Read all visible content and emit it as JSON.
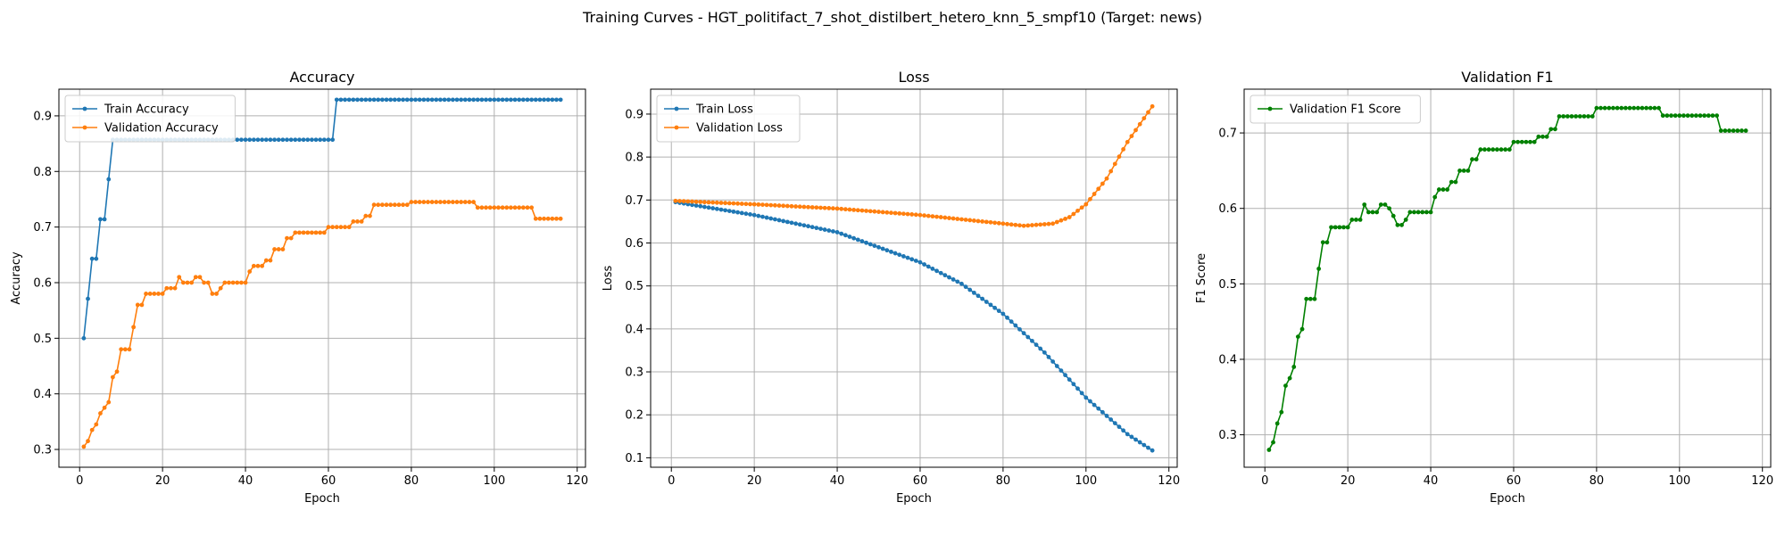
{
  "figure": {
    "suptitle": "Training Curves - HGT_politifact_7_shot_distilbert_hetero_knn_5_smpf10 (Target: news)"
  },
  "colors": {
    "blue": "#1f77b4",
    "orange": "#ff7f0e",
    "green": "#008000",
    "grid": "#b0b0b0"
  },
  "chart_data": [
    {
      "type": "line",
      "title": "Accuracy",
      "xlabel": "Epoch",
      "ylabel": "Accuracy",
      "xlim": [
        -5,
        122
      ],
      "ylim": [
        0.268,
        0.948
      ],
      "xticks": [
        0,
        20,
        40,
        60,
        80,
        100,
        120
      ],
      "yticks": [
        0.3,
        0.4,
        0.5,
        0.6,
        0.7,
        0.8,
        0.9
      ],
      "grid": true,
      "legend": "top-left",
      "series": [
        {
          "name": "Train Accuracy",
          "color": "#1f77b4",
          "steps": [
            [
              1,
              0.5
            ],
            [
              2,
              0.571
            ],
            [
              3,
              0.643
            ],
            [
              5,
              0.714
            ],
            [
              7,
              0.786
            ],
            [
              8,
              0.857
            ],
            [
              62,
              0.929
            ]
          ],
          "x_end": 116
        },
        {
          "name": "Validation Accuracy",
          "color": "#ff7f0e",
          "steps": [
            [
              1,
              0.305
            ],
            [
              2,
              0.315
            ],
            [
              3,
              0.335
            ],
            [
              4,
              0.345
            ],
            [
              5,
              0.365
            ],
            [
              6,
              0.375
            ],
            [
              7,
              0.385
            ],
            [
              8,
              0.43
            ],
            [
              9,
              0.44
            ],
            [
              10,
              0.48
            ],
            [
              13,
              0.52
            ],
            [
              14,
              0.56
            ],
            [
              16,
              0.58
            ],
            [
              21,
              0.59
            ],
            [
              24,
              0.61
            ],
            [
              25,
              0.6
            ],
            [
              28,
              0.61
            ],
            [
              30,
              0.6
            ],
            [
              32,
              0.58
            ],
            [
              34,
              0.59
            ],
            [
              35,
              0.6
            ],
            [
              41,
              0.62
            ],
            [
              42,
              0.63
            ],
            [
              45,
              0.64
            ],
            [
              47,
              0.66
            ],
            [
              50,
              0.68
            ],
            [
              52,
              0.69
            ],
            [
              60,
              0.7
            ],
            [
              66,
              0.71
            ],
            [
              69,
              0.72
            ],
            [
              71,
              0.74
            ],
            [
              80,
              0.745
            ],
            [
              96,
              0.735
            ],
            [
              110,
              0.715
            ]
          ],
          "x_end": 116
        }
      ]
    },
    {
      "type": "line",
      "title": "Loss",
      "xlabel": "Epoch",
      "ylabel": "Loss",
      "xlim": [
        -5,
        122
      ],
      "ylim": [
        0.078,
        0.958
      ],
      "xticks": [
        0,
        20,
        40,
        60,
        80,
        100,
        120
      ],
      "yticks": [
        0.1,
        0.2,
        0.3,
        0.4,
        0.5,
        0.6,
        0.7,
        0.8,
        0.9
      ],
      "grid": true,
      "legend": "top-left",
      "series": [
        {
          "name": "Train Loss",
          "color": "#1f77b4",
          "curve": [
            [
              1,
              0.695
            ],
            [
              20,
              0.665
            ],
            [
              40,
              0.625
            ],
            [
              60,
              0.555
            ],
            [
              70,
              0.505
            ],
            [
              80,
              0.435
            ],
            [
              90,
              0.345
            ],
            [
              100,
              0.24
            ],
            [
              110,
              0.155
            ],
            [
              116,
              0.117
            ]
          ]
        },
        {
          "name": "Validation Loss",
          "color": "#ff7f0e",
          "curve": [
            [
              1,
              0.698
            ],
            [
              20,
              0.69
            ],
            [
              40,
              0.68
            ],
            [
              60,
              0.665
            ],
            [
              75,
              0.65
            ],
            [
              85,
              0.64
            ],
            [
              92,
              0.645
            ],
            [
              96,
              0.66
            ],
            [
              100,
              0.69
            ],
            [
              105,
              0.75
            ],
            [
              110,
              0.835
            ],
            [
              116,
              0.918
            ]
          ]
        }
      ]
    },
    {
      "type": "line",
      "title": "Validation F1",
      "xlabel": "Epoch",
      "ylabel": "F1 Score",
      "xlim": [
        -5,
        122
      ],
      "ylim": [
        0.257,
        0.758
      ],
      "xticks": [
        0,
        20,
        40,
        60,
        80,
        100,
        120
      ],
      "yticks": [
        0.3,
        0.4,
        0.5,
        0.6,
        0.7
      ],
      "grid": true,
      "legend": "top-left",
      "series": [
        {
          "name": "Validation F1 Score",
          "color": "#008000",
          "steps": [
            [
              1,
              0.28
            ],
            [
              2,
              0.29
            ],
            [
              3,
              0.315
            ],
            [
              4,
              0.33
            ],
            [
              5,
              0.365
            ],
            [
              6,
              0.375
            ],
            [
              7,
              0.39
            ],
            [
              8,
              0.43
            ],
            [
              9,
              0.44
            ],
            [
              10,
              0.48
            ],
            [
              13,
              0.52
            ],
            [
              14,
              0.555
            ],
            [
              16,
              0.575
            ],
            [
              21,
              0.585
            ],
            [
              24,
              0.605
            ],
            [
              25,
              0.595
            ],
            [
              28,
              0.605
            ],
            [
              30,
              0.6
            ],
            [
              31,
              0.59
            ],
            [
              32,
              0.578
            ],
            [
              34,
              0.585
            ],
            [
              35,
              0.595
            ],
            [
              41,
              0.615
            ],
            [
              42,
              0.625
            ],
            [
              45,
              0.635
            ],
            [
              47,
              0.65
            ],
            [
              50,
              0.665
            ],
            [
              52,
              0.678
            ],
            [
              60,
              0.688
            ],
            [
              66,
              0.695
            ],
            [
              69,
              0.705
            ],
            [
              71,
              0.722
            ],
            [
              80,
              0.733
            ],
            [
              96,
              0.723
            ],
            [
              110,
              0.703
            ]
          ],
          "x_end": 116
        }
      ]
    }
  ]
}
